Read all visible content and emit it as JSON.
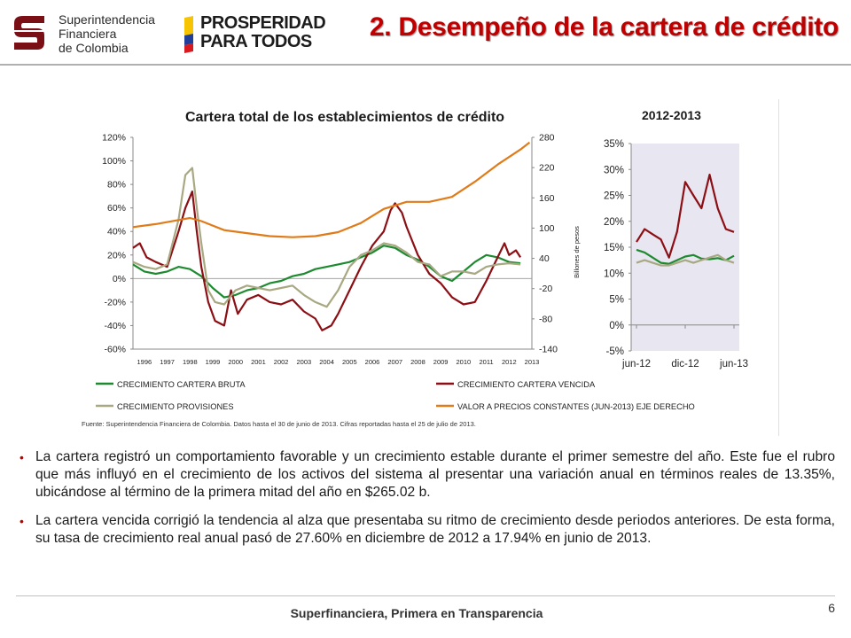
{
  "header": {
    "logo_lines": [
      "Superintendencia",
      "Financiera",
      "de Colombia"
    ],
    "campaign_lines": [
      "PROSPERIDAD",
      "PARA TODOS"
    ],
    "title": "2. Desempeño de la cartera de crédito"
  },
  "colors": {
    "green": "#1e8a30",
    "red": "#8b0f14",
    "khaki": "#a8a882",
    "orange": "#e07b1a",
    "title_red": "#c00000",
    "plot_bg_right": "#e8e6f0"
  },
  "chart_data": [
    {
      "type": "line",
      "title": "Cartera total de los establecimientos de crédito",
      "y_left": {
        "ticks": [
          "120%",
          "100%",
          "80%",
          "60%",
          "40%",
          "20%",
          "0%",
          "-20%",
          "-40%",
          "-60%"
        ],
        "ylim": [
          -60,
          120
        ]
      },
      "y_right": {
        "ticks": [
          "280",
          "220",
          "160",
          "100",
          "40",
          "-20",
          "-80",
          "-140"
        ],
        "ylim": [
          -140,
          280
        ],
        "label": "Billones de pesos"
      },
      "x_labels": [
        "1996",
        "1997",
        "1998",
        "1999",
        "2000",
        "2001",
        "2002",
        "2003",
        "2004",
        "2005",
        "2006",
        "2007",
        "2008",
        "2009",
        "2010",
        "2011",
        "2012",
        "2013"
      ],
      "x_range": [
        1996,
        2013.5
      ],
      "series": [
        {
          "name": "CRECIMIENTO CARTERA BRUTA",
          "color_key": "green",
          "axis": "left",
          "points": [
            [
              1996,
              12
            ],
            [
              1996.5,
              6
            ],
            [
              1997,
              4
            ],
            [
              1997.5,
              6
            ],
            [
              1998,
              10
            ],
            [
              1998.5,
              8
            ],
            [
              1999,
              2
            ],
            [
              1999.5,
              -8
            ],
            [
              2000,
              -16
            ],
            [
              2000.5,
              -14
            ],
            [
              2001,
              -10
            ],
            [
              2001.5,
              -8
            ],
            [
              2002,
              -4
            ],
            [
              2002.5,
              -2
            ],
            [
              2003,
              2
            ],
            [
              2003.5,
              4
            ],
            [
              2004,
              8
            ],
            [
              2004.5,
              10
            ],
            [
              2005,
              12
            ],
            [
              2005.5,
              14
            ],
            [
              2006,
              18
            ],
            [
              2006.5,
              22
            ],
            [
              2007,
              28
            ],
            [
              2007.5,
              26
            ],
            [
              2008,
              20
            ],
            [
              2008.5,
              16
            ],
            [
              2009,
              10
            ],
            [
              2009.5,
              2
            ],
            [
              2010,
              -2
            ],
            [
              2010.5,
              6
            ],
            [
              2011,
              14
            ],
            [
              2011.5,
              20
            ],
            [
              2012,
              18
            ],
            [
              2012.5,
              14
            ],
            [
              2013,
              13
            ]
          ]
        },
        {
          "name": "CRECIMIENTO CARTERA VENCIDA",
          "color_key": "red",
          "axis": "left",
          "points": [
            [
              1996,
              26
            ],
            [
              1996.3,
              30
            ],
            [
              1996.6,
              18
            ],
            [
              1997,
              14
            ],
            [
              1997.5,
              10
            ],
            [
              1998,
              40
            ],
            [
              1998.3,
              60
            ],
            [
              1998.6,
              74
            ],
            [
              1998.8,
              40
            ],
            [
              1999,
              10
            ],
            [
              1999.3,
              -20
            ],
            [
              1999.6,
              -36
            ],
            [
              2000,
              -40
            ],
            [
              2000.3,
              -10
            ],
            [
              2000.6,
              -30
            ],
            [
              2001,
              -18
            ],
            [
              2001.5,
              -14
            ],
            [
              2002,
              -20
            ],
            [
              2002.5,
              -22
            ],
            [
              2003,
              -18
            ],
            [
              2003.5,
              -28
            ],
            [
              2004,
              -34
            ],
            [
              2004.3,
              -44
            ],
            [
              2004.7,
              -40
            ],
            [
              2005,
              -30
            ],
            [
              2005.5,
              -10
            ],
            [
              2006,
              10
            ],
            [
              2006.5,
              28
            ],
            [
              2007,
              40
            ],
            [
              2007.3,
              58
            ],
            [
              2007.5,
              64
            ],
            [
              2007.8,
              56
            ],
            [
              2008,
              44
            ],
            [
              2008.5,
              20
            ],
            [
              2009,
              4
            ],
            [
              2009.5,
              -4
            ],
            [
              2010,
              -16
            ],
            [
              2010.5,
              -22
            ],
            [
              2011,
              -20
            ],
            [
              2011.5,
              -2
            ],
            [
              2012,
              18
            ],
            [
              2012.3,
              30
            ],
            [
              2012.5,
              20
            ],
            [
              2012.8,
              24
            ],
            [
              2013,
              18
            ]
          ]
        },
        {
          "name": "CRECIMIENTO PROVISIONES",
          "color_key": "khaki",
          "axis": "left",
          "points": [
            [
              1996,
              14
            ],
            [
              1996.5,
              10
            ],
            [
              1997,
              8
            ],
            [
              1997.5,
              12
            ],
            [
              1998,
              50
            ],
            [
              1998.3,
              88
            ],
            [
              1998.6,
              94
            ],
            [
              1998.8,
              60
            ],
            [
              1999,
              30
            ],
            [
              1999.3,
              -10
            ],
            [
              1999.6,
              -20
            ],
            [
              2000,
              -22
            ],
            [
              2000.5,
              -10
            ],
            [
              2001,
              -6
            ],
            [
              2001.5,
              -8
            ],
            [
              2002,
              -10
            ],
            [
              2002.5,
              -8
            ],
            [
              2003,
              -6
            ],
            [
              2003.5,
              -14
            ],
            [
              2004,
              -20
            ],
            [
              2004.5,
              -24
            ],
            [
              2005,
              -10
            ],
            [
              2005.5,
              10
            ],
            [
              2006,
              20
            ],
            [
              2006.5,
              24
            ],
            [
              2007,
              30
            ],
            [
              2007.5,
              28
            ],
            [
              2008,
              22
            ],
            [
              2008.5,
              14
            ],
            [
              2009,
              12
            ],
            [
              2009.5,
              2
            ],
            [
              2010,
              6
            ],
            [
              2010.5,
              6
            ],
            [
              2011,
              4
            ],
            [
              2011.5,
              10
            ],
            [
              2012,
              12
            ],
            [
              2012.5,
              13
            ],
            [
              2013,
              12
            ]
          ]
        },
        {
          "name": "VALOR A PRECIOS CONSTANTES (JUN-2013) EJE DERECHO",
          "color_key": "orange",
          "axis": "right",
          "points": [
            [
              1996,
              102
            ],
            [
              1997,
              108
            ],
            [
              1998,
              116
            ],
            [
              1998.5,
              120
            ],
            [
              1999,
              114
            ],
            [
              2000,
              96
            ],
            [
              2001,
              90
            ],
            [
              2002,
              84
            ],
            [
              2003,
              82
            ],
            [
              2004,
              84
            ],
            [
              2005,
              92
            ],
            [
              2006,
              110
            ],
            [
              2007,
              138
            ],
            [
              2008,
              152
            ],
            [
              2009,
              152
            ],
            [
              2010,
              162
            ],
            [
              2011,
              192
            ],
            [
              2012,
              226
            ],
            [
              2013,
              256
            ],
            [
              2013.4,
              270
            ]
          ]
        }
      ],
      "legend": [
        "CRECIMIENTO CARTERA BRUTA",
        "CRECIMIENTO CARTERA VENCIDA",
        "CRECIMIENTO PROVISIONES",
        "VALOR A PRECIOS CONSTANTES (JUN-2013) EJE DERECHO"
      ],
      "source_note": "Fuente: Superintendencia Financiera de Colombia. Datos hasta el 30 de junio de 2013. Cifras reportadas hasta el 25 de julio de 2013."
    },
    {
      "type": "line",
      "title": "2012-2013",
      "y": {
        "ticks": [
          "35%",
          "30%",
          "25%",
          "20%",
          "15%",
          "10%",
          "5%",
          "0%",
          "-5%"
        ],
        "ylim": [
          -5,
          35
        ]
      },
      "x_labels": [
        "jun-12",
        "dic-12",
        "jun-13"
      ],
      "series": [
        {
          "color_key": "green",
          "values": [
            14.5,
            14,
            13,
            12,
            11.8,
            12.5,
            13.2,
            13.5,
            12.8,
            12.7,
            12.9,
            12.5,
            13.35
          ]
        },
        {
          "color_key": "red",
          "values": [
            16,
            18.5,
            17.5,
            16.5,
            13,
            18,
            27.6,
            25,
            22.5,
            29,
            22.5,
            18.5,
            17.94
          ]
        },
        {
          "color_key": "khaki",
          "values": [
            12,
            12.5,
            12,
            11.5,
            11.5,
            12,
            12.5,
            12,
            12.5,
            13,
            13.5,
            12.5,
            12
          ]
        }
      ]
    }
  ],
  "bullets": [
    "La cartera registró un comportamiento favorable y un crecimiento estable durante el primer semestre del año. Este fue el rubro que más influyó en el crecimiento de los activos del sistema al presentar una variación anual en términos reales de 13.35%, ubicándose al término de la primera mitad del año en $265.02 b.",
    "La cartera vencida corrigió la tendencia al alza que presentaba su ritmo de crecimiento desde periodos anteriores. De esta forma, su tasa de crecimiento real anual pasó de 27.60% en diciembre de 2012 a 17.94% en junio de 2013."
  ],
  "footer": {
    "tagline": "Superfinanciera, Primera en Transparencia",
    "page_number": "6"
  }
}
